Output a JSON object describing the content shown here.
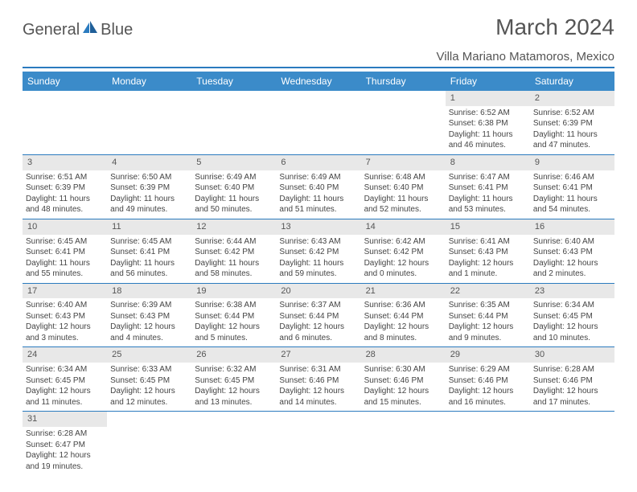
{
  "header": {
    "logo_text_1": "General",
    "logo_text_2": "Blue",
    "month_title": "March 2024",
    "location": "Villa Mariano Matamoros, Mexico"
  },
  "colors": {
    "header_blue": "#3b8bc9",
    "rule_blue": "#2b7bbf",
    "daynum_bg": "#e8e8e8",
    "text": "#444444"
  },
  "weekdays": [
    "Sunday",
    "Monday",
    "Tuesday",
    "Wednesday",
    "Thursday",
    "Friday",
    "Saturday"
  ],
  "weeks": [
    [
      null,
      null,
      null,
      null,
      null,
      {
        "n": "1",
        "sr": "Sunrise: 6:52 AM",
        "ss": "Sunset: 6:38 PM",
        "d1": "Daylight: 11 hours",
        "d2": "and 46 minutes."
      },
      {
        "n": "2",
        "sr": "Sunrise: 6:52 AM",
        "ss": "Sunset: 6:39 PM",
        "d1": "Daylight: 11 hours",
        "d2": "and 47 minutes."
      }
    ],
    [
      {
        "n": "3",
        "sr": "Sunrise: 6:51 AM",
        "ss": "Sunset: 6:39 PM",
        "d1": "Daylight: 11 hours",
        "d2": "and 48 minutes."
      },
      {
        "n": "4",
        "sr": "Sunrise: 6:50 AM",
        "ss": "Sunset: 6:39 PM",
        "d1": "Daylight: 11 hours",
        "d2": "and 49 minutes."
      },
      {
        "n": "5",
        "sr": "Sunrise: 6:49 AM",
        "ss": "Sunset: 6:40 PM",
        "d1": "Daylight: 11 hours",
        "d2": "and 50 minutes."
      },
      {
        "n": "6",
        "sr": "Sunrise: 6:49 AM",
        "ss": "Sunset: 6:40 PM",
        "d1": "Daylight: 11 hours",
        "d2": "and 51 minutes."
      },
      {
        "n": "7",
        "sr": "Sunrise: 6:48 AM",
        "ss": "Sunset: 6:40 PM",
        "d1": "Daylight: 11 hours",
        "d2": "and 52 minutes."
      },
      {
        "n": "8",
        "sr": "Sunrise: 6:47 AM",
        "ss": "Sunset: 6:41 PM",
        "d1": "Daylight: 11 hours",
        "d2": "and 53 minutes."
      },
      {
        "n": "9",
        "sr": "Sunrise: 6:46 AM",
        "ss": "Sunset: 6:41 PM",
        "d1": "Daylight: 11 hours",
        "d2": "and 54 minutes."
      }
    ],
    [
      {
        "n": "10",
        "sr": "Sunrise: 6:45 AM",
        "ss": "Sunset: 6:41 PM",
        "d1": "Daylight: 11 hours",
        "d2": "and 55 minutes."
      },
      {
        "n": "11",
        "sr": "Sunrise: 6:45 AM",
        "ss": "Sunset: 6:41 PM",
        "d1": "Daylight: 11 hours",
        "d2": "and 56 minutes."
      },
      {
        "n": "12",
        "sr": "Sunrise: 6:44 AM",
        "ss": "Sunset: 6:42 PM",
        "d1": "Daylight: 11 hours",
        "d2": "and 58 minutes."
      },
      {
        "n": "13",
        "sr": "Sunrise: 6:43 AM",
        "ss": "Sunset: 6:42 PM",
        "d1": "Daylight: 11 hours",
        "d2": "and 59 minutes."
      },
      {
        "n": "14",
        "sr": "Sunrise: 6:42 AM",
        "ss": "Sunset: 6:42 PM",
        "d1": "Daylight: 12 hours",
        "d2": "and 0 minutes."
      },
      {
        "n": "15",
        "sr": "Sunrise: 6:41 AM",
        "ss": "Sunset: 6:43 PM",
        "d1": "Daylight: 12 hours",
        "d2": "and 1 minute."
      },
      {
        "n": "16",
        "sr": "Sunrise: 6:40 AM",
        "ss": "Sunset: 6:43 PM",
        "d1": "Daylight: 12 hours",
        "d2": "and 2 minutes."
      }
    ],
    [
      {
        "n": "17",
        "sr": "Sunrise: 6:40 AM",
        "ss": "Sunset: 6:43 PM",
        "d1": "Daylight: 12 hours",
        "d2": "and 3 minutes."
      },
      {
        "n": "18",
        "sr": "Sunrise: 6:39 AM",
        "ss": "Sunset: 6:43 PM",
        "d1": "Daylight: 12 hours",
        "d2": "and 4 minutes."
      },
      {
        "n": "19",
        "sr": "Sunrise: 6:38 AM",
        "ss": "Sunset: 6:44 PM",
        "d1": "Daylight: 12 hours",
        "d2": "and 5 minutes."
      },
      {
        "n": "20",
        "sr": "Sunrise: 6:37 AM",
        "ss": "Sunset: 6:44 PM",
        "d1": "Daylight: 12 hours",
        "d2": "and 6 minutes."
      },
      {
        "n": "21",
        "sr": "Sunrise: 6:36 AM",
        "ss": "Sunset: 6:44 PM",
        "d1": "Daylight: 12 hours",
        "d2": "and 8 minutes."
      },
      {
        "n": "22",
        "sr": "Sunrise: 6:35 AM",
        "ss": "Sunset: 6:44 PM",
        "d1": "Daylight: 12 hours",
        "d2": "and 9 minutes."
      },
      {
        "n": "23",
        "sr": "Sunrise: 6:34 AM",
        "ss": "Sunset: 6:45 PM",
        "d1": "Daylight: 12 hours",
        "d2": "and 10 minutes."
      }
    ],
    [
      {
        "n": "24",
        "sr": "Sunrise: 6:34 AM",
        "ss": "Sunset: 6:45 PM",
        "d1": "Daylight: 12 hours",
        "d2": "and 11 minutes."
      },
      {
        "n": "25",
        "sr": "Sunrise: 6:33 AM",
        "ss": "Sunset: 6:45 PM",
        "d1": "Daylight: 12 hours",
        "d2": "and 12 minutes."
      },
      {
        "n": "26",
        "sr": "Sunrise: 6:32 AM",
        "ss": "Sunset: 6:45 PM",
        "d1": "Daylight: 12 hours",
        "d2": "and 13 minutes."
      },
      {
        "n": "27",
        "sr": "Sunrise: 6:31 AM",
        "ss": "Sunset: 6:46 PM",
        "d1": "Daylight: 12 hours",
        "d2": "and 14 minutes."
      },
      {
        "n": "28",
        "sr": "Sunrise: 6:30 AM",
        "ss": "Sunset: 6:46 PM",
        "d1": "Daylight: 12 hours",
        "d2": "and 15 minutes."
      },
      {
        "n": "29",
        "sr": "Sunrise: 6:29 AM",
        "ss": "Sunset: 6:46 PM",
        "d1": "Daylight: 12 hours",
        "d2": "and 16 minutes."
      },
      {
        "n": "30",
        "sr": "Sunrise: 6:28 AM",
        "ss": "Sunset: 6:46 PM",
        "d1": "Daylight: 12 hours",
        "d2": "and 17 minutes."
      }
    ],
    [
      {
        "n": "31",
        "sr": "Sunrise: 6:28 AM",
        "ss": "Sunset: 6:47 PM",
        "d1": "Daylight: 12 hours",
        "d2": "and 19 minutes."
      },
      null,
      null,
      null,
      null,
      null,
      null
    ]
  ]
}
